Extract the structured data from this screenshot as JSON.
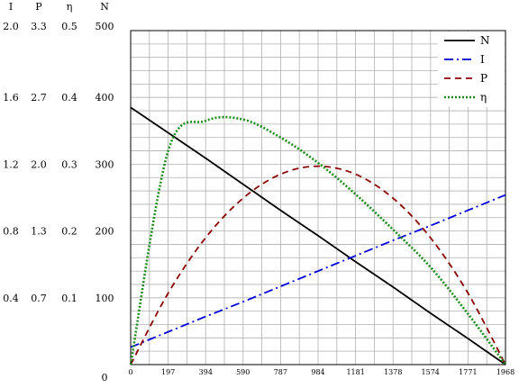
{
  "chart_data": {
    "type": "line",
    "title": "",
    "x_ticks": [
      "0",
      "197",
      "394",
      "590",
      "787",
      "984",
      "1181",
      "1378",
      "1574",
      "1771",
      "1968"
    ],
    "xlim": [
      0,
      1968
    ],
    "ylim": [
      0,
      500
    ],
    "grid": true,
    "legend_placement": "top-right",
    "y_axes": [
      {
        "label": "I",
        "ticks": [
          "2.0",
          "1.6",
          "1.2",
          "0.8",
          "0.4"
        ]
      },
      {
        "label": "P",
        "ticks": [
          "3.3",
          "2.7",
          "2.0",
          "1.3",
          "0.7"
        ]
      },
      {
        "label": "η",
        "ticks": [
          "0.5",
          "0.4",
          "0.3",
          "0.2",
          "0.1"
        ]
      },
      {
        "label": "N",
        "ticks": [
          "500",
          "400",
          "300",
          "200",
          "100",
          "0"
        ]
      }
    ],
    "x": [
      0,
      197,
      394,
      590,
      787,
      984,
      1181,
      1378,
      1574,
      1771,
      1968
    ],
    "series": [
      {
        "name": "N",
        "color": "#000000",
        "dash": "solid",
        "values": [
          385,
          347,
          309,
          270,
          231,
          193,
          154,
          116,
          77,
          39,
          0
        ]
      },
      {
        "name": "I",
        "color": "#0000dd",
        "dash": "dashdot",
        "values": [
          26,
          49,
          72,
          94,
          117,
          140,
          163,
          186,
          208,
          231,
          254
        ]
      },
      {
        "name": "P",
        "color": "#8b0000",
        "dash": "dash",
        "values": [
          0,
          107,
          190,
          249,
          285,
          297,
          285,
          249,
          190,
          107,
          0
        ]
      },
      {
        "name": "η",
        "color": "#1a8a1a",
        "dash": "dotted",
        "values": [
          0,
          320,
          365,
          367,
          340,
          302,
          255,
          202,
          146,
          76,
          0
        ]
      }
    ]
  }
}
